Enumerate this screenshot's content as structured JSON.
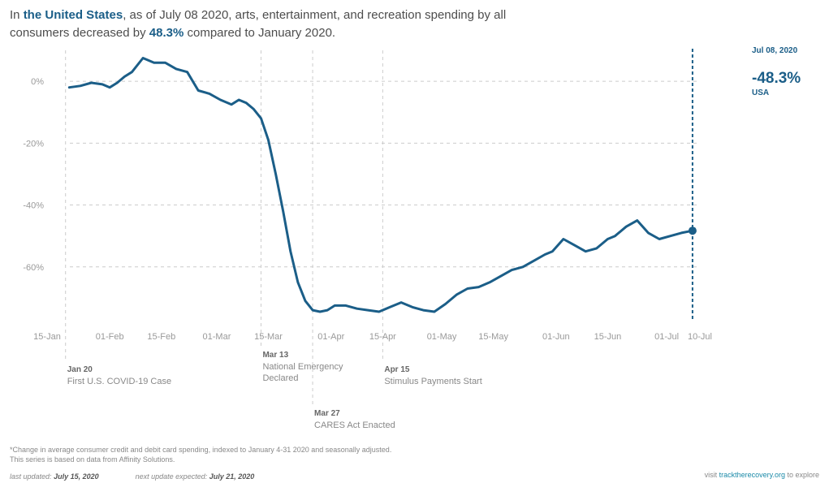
{
  "headline": {
    "p1": "In ",
    "region": "the United States",
    "p2": ", as of July 08 2020, arts, entertainment, and recreation spending by all consumers decreased by ",
    "value": "48.3%",
    "p3": " compared to January 2020."
  },
  "side_label": {
    "date": "Jul 08, 2020",
    "value": "-48.3%",
    "location": "USA"
  },
  "footnotes": {
    "note": "*Change in average consumer credit and debit card spending, indexed to January 4-31 2020 and seasonally adjusted.",
    "source": "This series is based on data from Affinity Solutions.",
    "last_updated_label": "last updated:",
    "last_updated_value": "July 15, 2020",
    "next_update_label": "next update expected:",
    "next_update_value": "July 21, 2020",
    "visit_prefix": "visit ",
    "visit_link": "tracktherecovery.org",
    "visit_suffix": " to explore"
  },
  "colors": {
    "line": "#1b5e88",
    "grid": "#cccccc",
    "text": "#999999"
  },
  "chart_data": {
    "type": "line",
    "title": "",
    "xlabel": "",
    "ylabel": "",
    "xlim": [
      "2020-01-15",
      "2020-07-10"
    ],
    "ylim": [
      -80,
      10
    ],
    "grid": true,
    "x_ticks": [
      {
        "date": "2020-01-15",
        "label": "15-Jan"
      },
      {
        "date": "2020-02-01",
        "label": "01-Feb"
      },
      {
        "date": "2020-02-15",
        "label": "15-Feb"
      },
      {
        "date": "2020-03-01",
        "label": "01-Mar"
      },
      {
        "date": "2020-03-15",
        "label": "15-Mar"
      },
      {
        "date": "2020-04-01",
        "label": "01-Apr"
      },
      {
        "date": "2020-04-15",
        "label": "15-Apr"
      },
      {
        "date": "2020-05-01",
        "label": "01-May"
      },
      {
        "date": "2020-05-15",
        "label": "15-May"
      },
      {
        "date": "2020-06-01",
        "label": "01-Jun"
      },
      {
        "date": "2020-06-15",
        "label": "15-Jun"
      },
      {
        "date": "2020-07-01",
        "label": "01-Jul"
      },
      {
        "date": "2020-07-10",
        "label": "10-Jul"
      }
    ],
    "y_ticks": [
      {
        "value": 0,
        "label": "0%"
      },
      {
        "value": -20,
        "label": "-20%"
      },
      {
        "value": -40,
        "label": "-40%"
      },
      {
        "value": -60,
        "label": "-60%"
      }
    ],
    "series": [
      {
        "x": [
          "2020-01-21",
          "2020-01-24",
          "2020-01-27",
          "2020-01-30",
          "2020-02-01",
          "2020-02-03",
          "2020-02-05",
          "2020-02-07",
          "2020-02-10",
          "2020-02-13",
          "2020-02-16",
          "2020-02-19",
          "2020-02-22",
          "2020-02-25",
          "2020-02-28",
          "2020-03-02",
          "2020-03-05",
          "2020-03-07",
          "2020-03-09",
          "2020-03-11",
          "2020-03-13",
          "2020-03-15",
          "2020-03-17",
          "2020-03-19",
          "2020-03-21",
          "2020-03-23",
          "2020-03-25",
          "2020-03-27",
          "2020-03-29",
          "2020-03-31",
          "2020-04-02",
          "2020-04-05",
          "2020-04-08",
          "2020-04-11",
          "2020-04-14",
          "2020-04-17",
          "2020-04-20",
          "2020-04-23",
          "2020-04-26",
          "2020-04-29",
          "2020-05-02",
          "2020-05-05",
          "2020-05-08",
          "2020-05-11",
          "2020-05-14",
          "2020-05-17",
          "2020-05-20",
          "2020-05-23",
          "2020-05-26",
          "2020-05-29",
          "2020-05-31",
          "2020-06-03",
          "2020-06-06",
          "2020-06-09",
          "2020-06-12",
          "2020-06-15",
          "2020-06-17",
          "2020-06-20",
          "2020-06-23",
          "2020-06-26",
          "2020-06-29",
          "2020-07-02",
          "2020-07-05",
          "2020-07-08"
        ],
        "y": [
          -2,
          -1.5,
          -0.5,
          -1,
          -2,
          -0.5,
          1.5,
          3,
          7.5,
          6,
          6,
          4,
          3,
          -3,
          -4,
          -6,
          -7.5,
          -6,
          -7,
          -9,
          -12,
          -19,
          -30,
          -42,
          -55,
          -65,
          -71,
          -74,
          -74.5,
          -74,
          -72.5,
          -72.5,
          -73.5,
          -74,
          -74.5,
          -73,
          -71.5,
          -73,
          -74,
          -74.5,
          -72,
          -69,
          -67,
          -66.5,
          -65,
          -63,
          -61,
          -60,
          -58,
          -56,
          -55,
          -51,
          -53,
          -55,
          -54,
          -51,
          -50,
          -47,
          -45,
          -49,
          -51,
          -50,
          -49,
          -48.3
        ]
      }
    ],
    "annotations": [
      {
        "date": "2020-01-20",
        "label": "Jan 20",
        "text": [
          "First U.S. COVID-19 Case"
        ]
      },
      {
        "date": "2020-03-13",
        "label": "Mar 13",
        "text": [
          "National Emergency",
          "Declared"
        ]
      },
      {
        "date": "2020-03-27",
        "label": "Mar 27",
        "text": [
          "CARES Act Enacted"
        ]
      },
      {
        "date": "2020-04-15",
        "label": "Apr 15",
        "text": [
          "Stimulus Payments Start"
        ]
      }
    ]
  }
}
